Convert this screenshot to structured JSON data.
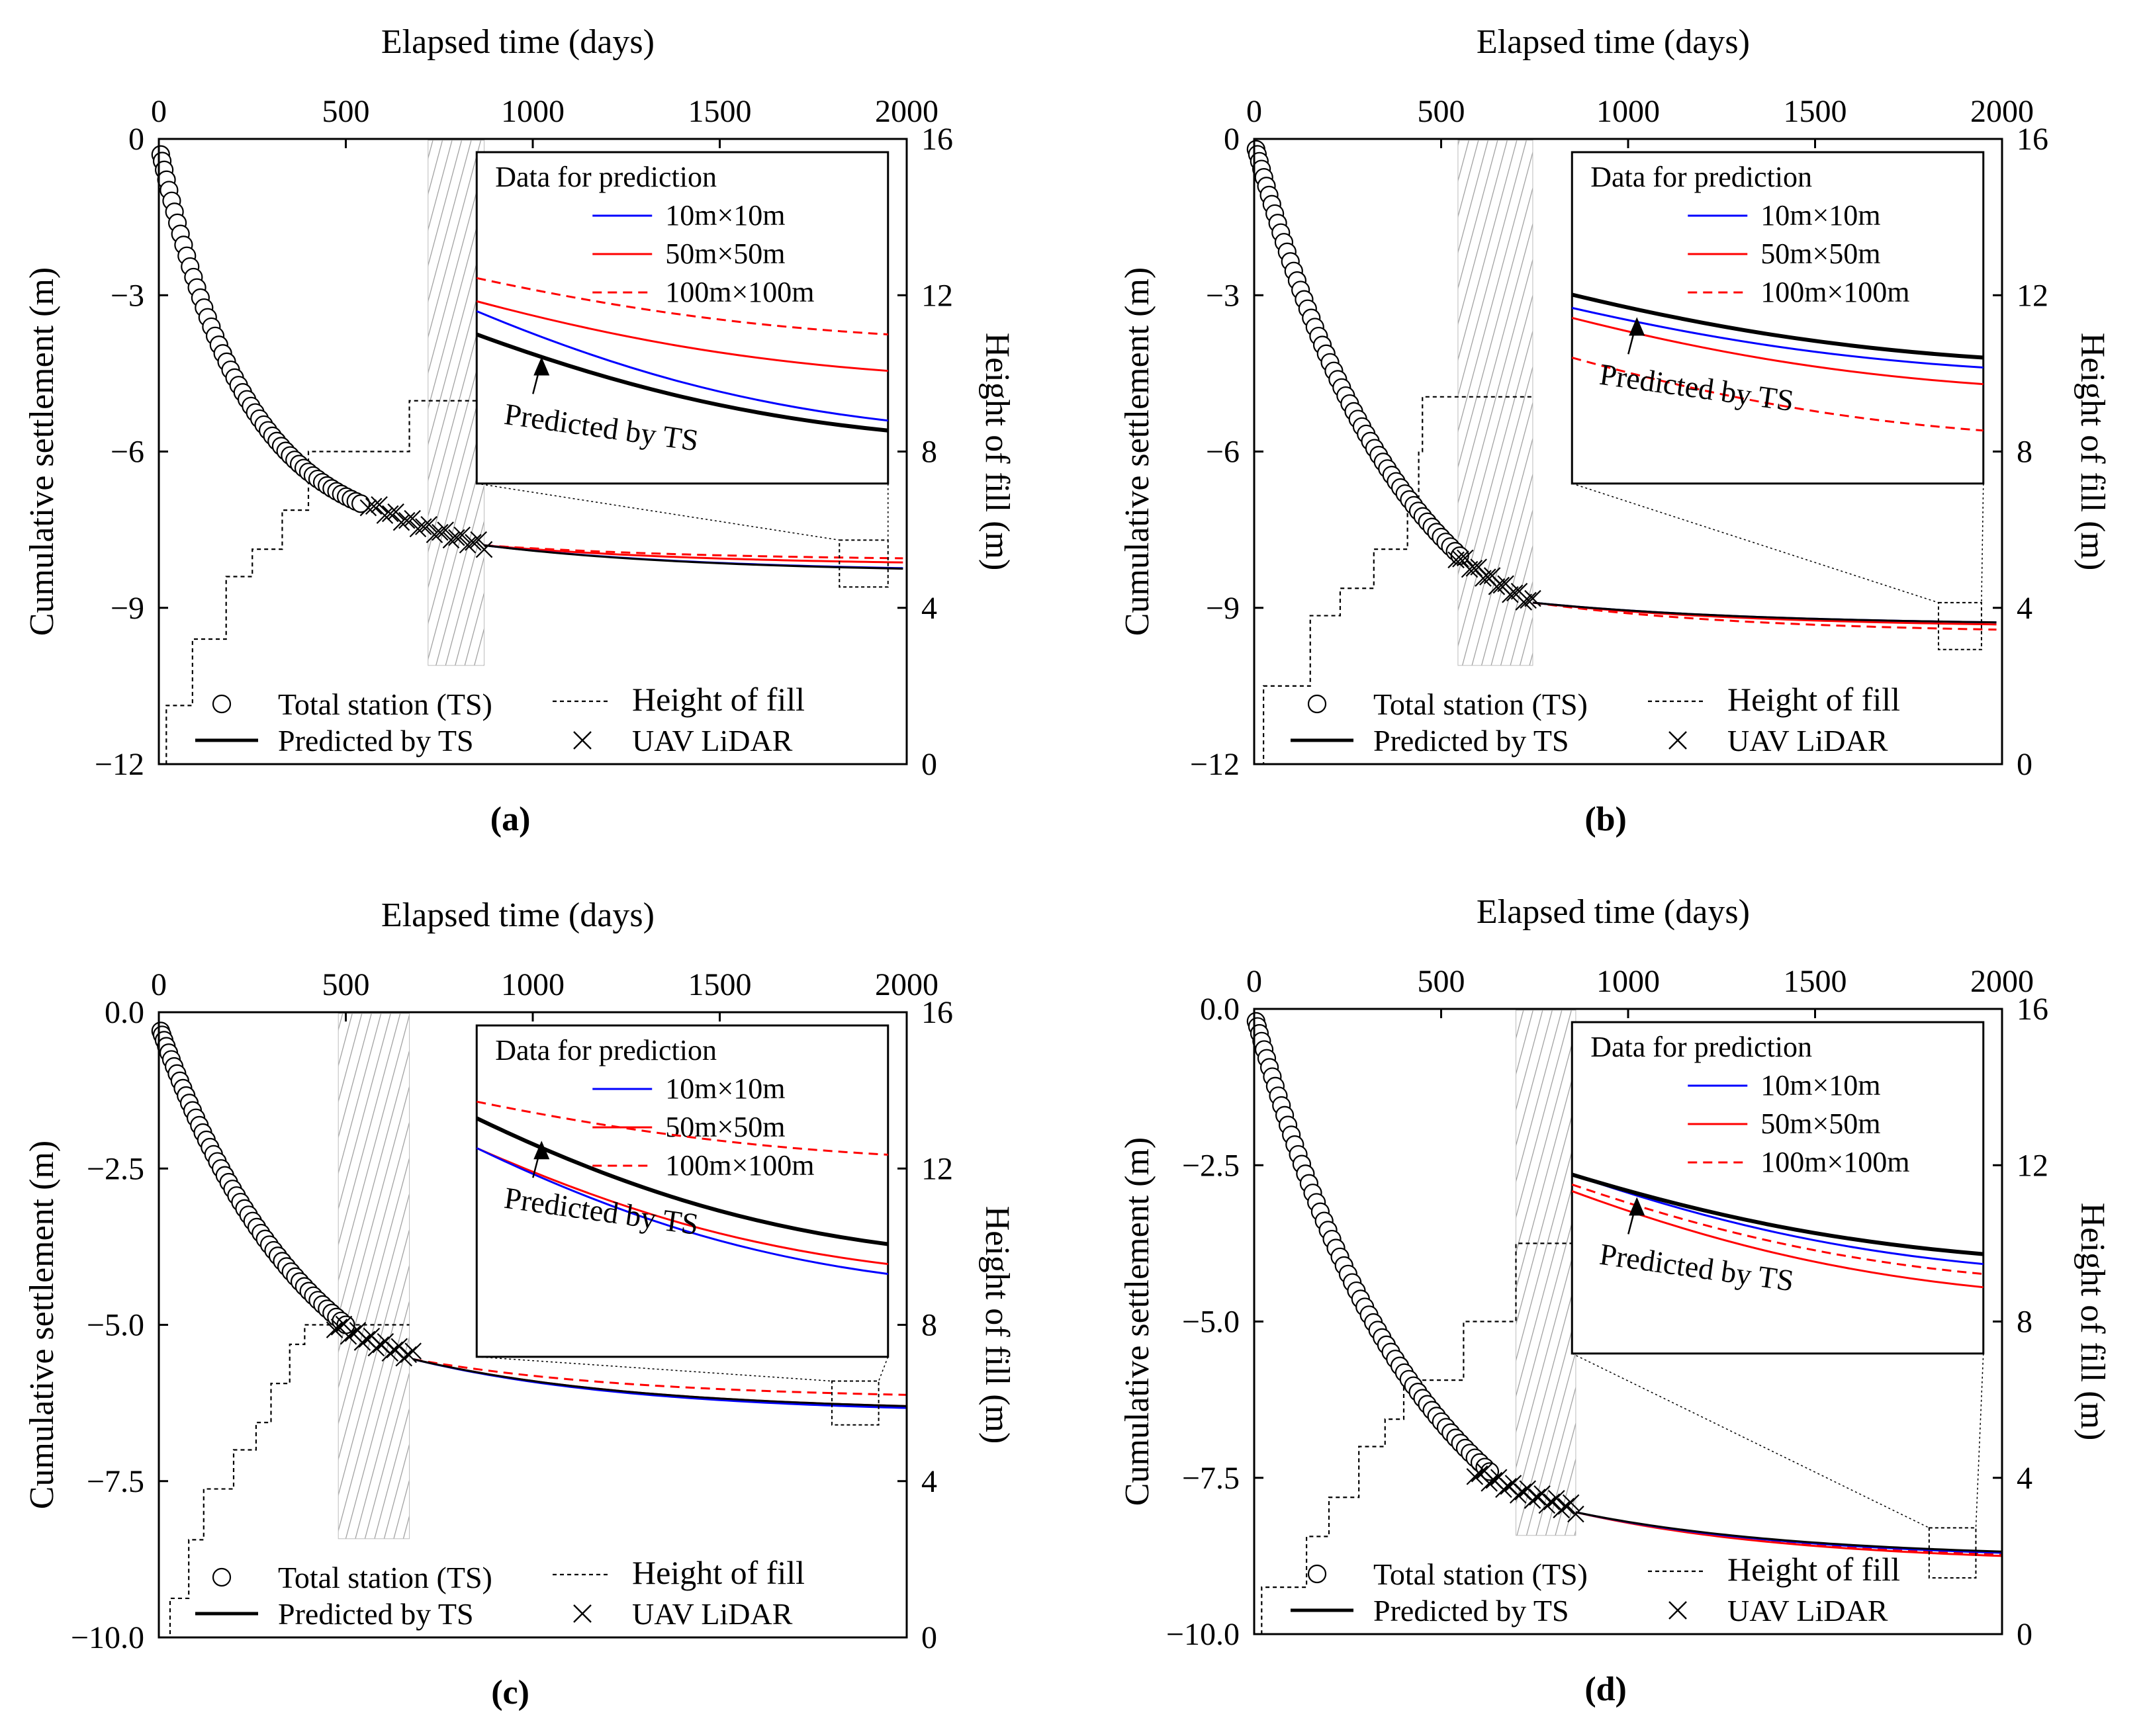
{
  "chart_data": [
    {
      "id": "a",
      "type": "line",
      "panel_label": "(a)",
      "title": "",
      "xlabel": "Elapsed time (days)",
      "ylabel": "Cumulative settlement (m)",
      "y2label": "Height of fill (m)",
      "xlim": [
        0,
        2000
      ],
      "ylim": [
        -12,
        0
      ],
      "y2lim": [
        0,
        16
      ],
      "xticks": [
        "0",
        "500",
        "1000",
        "1500",
        "2000"
      ],
      "yticks": [
        {
          "v": 0,
          "t": "0"
        },
        {
          "v": -3,
          "t": "-3"
        },
        {
          "v": -6,
          "t": "-6"
        },
        {
          "v": -9,
          "t": "-9"
        },
        {
          "v": -12,
          "t": "-12"
        }
      ],
      "y2ticks": [
        "0",
        "4",
        "8",
        "12",
        "16"
      ],
      "ts_points": {
        "t0": 5,
        "t1": 540,
        "s0": -0.3,
        "s1": -7.0,
        "tau": 230,
        "n": 52
      },
      "lidar_points": {
        "t0": 560,
        "t1": 870,
        "s0": -7.0,
        "s1": -7.8,
        "tau": 500,
        "n": 22
      },
      "shaded_window": [
        720,
        870
      ],
      "fill_height_steps": [
        [
          0,
          0
        ],
        [
          20,
          1.5
        ],
        [
          90,
          3.2
        ],
        [
          180,
          4.8
        ],
        [
          250,
          5.5
        ],
        [
          330,
          6.5
        ],
        [
          400,
          8.0
        ],
        [
          670,
          9.3
        ],
        [
          870,
          9.3
        ]
      ],
      "prediction": {
        "t_start": 870,
        "s_start": -7.8,
        "predicted_by_ts": -8.25,
        "m10": -8.24,
        "m50": -8.13,
        "m100": -8.05
      },
      "zoom_box": {
        "t": [
          1820,
          1950
        ],
        "s": [
          -7.7,
          -8.6
        ]
      },
      "inset": {
        "title": "Data for prediction",
        "legend": [
          "10m×10m",
          "50m×50m",
          "100m×100m"
        ],
        "annotation": "Predicted by TS",
        "curves": {
          "predicted_by_ts": [
            0.55,
            0.84
          ],
          "m10": [
            0.48,
            0.81
          ],
          "m50": [
            0.45,
            0.66
          ],
          "m100": [
            0.38,
            0.55
          ]
        }
      },
      "legend": {
        "total_station": "Total station (TS)",
        "height_of_fill": "Height of fill",
        "predicted_by_ts": "Predicted by TS",
        "uav_lidar": "UAV LiDAR"
      }
    },
    {
      "id": "b",
      "type": "line",
      "panel_label": "(b)",
      "title": "",
      "xlabel": "Elapsed time (days)",
      "ylabel": "Cumulative settlement (m)",
      "y2label": "Height of fill (m)",
      "xlim": [
        0,
        2000
      ],
      "ylim": [
        -12,
        0
      ],
      "y2lim": [
        0,
        16
      ],
      "xticks": [
        "0",
        "500",
        "1000",
        "1500",
        "2000"
      ],
      "yticks": [
        {
          "v": 0,
          "t": "0"
        },
        {
          "v": -3,
          "t": "-3"
        },
        {
          "v": -6,
          "t": "-6"
        },
        {
          "v": -9,
          "t": "-9"
        },
        {
          "v": -12,
          "t": "-12"
        }
      ],
      "y2ticks": [
        "0",
        "4",
        "8",
        "12",
        "16"
      ],
      "ts_points": {
        "t0": 5,
        "t1": 550,
        "s0": -0.2,
        "s1": -8.0,
        "tau": 400,
        "n": 55
      },
      "lidar_points": {
        "t0": 540,
        "t1": 745,
        "s0": -8.0,
        "s1": -8.9,
        "tau": 600,
        "n": 18
      },
      "shaded_window": [
        545,
        745
      ],
      "fill_height_steps": [
        [
          0,
          0
        ],
        [
          25,
          2.0
        ],
        [
          150,
          3.8
        ],
        [
          230,
          4.5
        ],
        [
          320,
          5.5
        ],
        [
          410,
          6.5
        ],
        [
          440,
          8.0
        ],
        [
          450,
          9.4
        ],
        [
          745,
          9.4
        ]
      ],
      "prediction": {
        "t_start": 745,
        "s_start": -8.9,
        "predicted_by_ts": -9.28,
        "m10": -9.28,
        "m50": -9.32,
        "m100": -9.42
      },
      "zoom_box": {
        "t": [
          1830,
          1945
        ],
        "s": [
          -8.9,
          -9.8
        ]
      },
      "inset": {
        "title": "Data for prediction",
        "legend": [
          "10m×10m",
          "50m×50m",
          "100m×100m"
        ],
        "annotation": "Predicted by TS",
        "curves": {
          "predicted_by_ts": [
            0.43,
            0.62
          ],
          "m10": [
            0.47,
            0.65
          ],
          "m50": [
            0.5,
            0.7
          ],
          "m100": [
            0.62,
            0.84
          ]
        }
      },
      "legend": {
        "total_station": "Total station (TS)",
        "height_of_fill": "Height of fill",
        "predicted_by_ts": "Predicted by TS",
        "uav_lidar": "UAV LiDAR"
      }
    },
    {
      "id": "c",
      "type": "line",
      "panel_label": "(c)",
      "title": "",
      "xlabel": "Elapsed time (days)",
      "ylabel": "Cumulative settlement (m)",
      "y2label": "Height of fill (m)",
      "xlim": [
        0,
        2000
      ],
      "ylim": [
        -10,
        0
      ],
      "y2lim": [
        0,
        16
      ],
      "xticks": [
        "0",
        "500",
        "1000",
        "1500",
        "2000"
      ],
      "yticks": [
        {
          "v": 0,
          "t": "0.0"
        },
        {
          "v": -2.5,
          "t": "-2.5"
        },
        {
          "v": -5,
          "t": "-5.0"
        },
        {
          "v": -7.5,
          "t": "-7.5"
        },
        {
          "v": -10,
          "t": "-10.0"
        }
      ],
      "y2ticks": [
        "0",
        "4",
        "8",
        "12",
        "16"
      ],
      "ts_points": {
        "t0": 5,
        "t1": 500,
        "s0": -0.3,
        "s1": -5.0,
        "tau": 400,
        "n": 50
      },
      "lidar_points": {
        "t0": 470,
        "t1": 680,
        "s0": -5.0,
        "s1": -5.5,
        "tau": 500,
        "n": 18
      },
      "shaded_window": [
        480,
        670
      ],
      "fill_height_steps": [
        [
          0,
          0
        ],
        [
          30,
          1.0
        ],
        [
          80,
          2.5
        ],
        [
          120,
          3.8
        ],
        [
          200,
          4.8
        ],
        [
          260,
          5.5
        ],
        [
          300,
          6.5
        ],
        [
          350,
          7.5
        ],
        [
          390,
          8.0
        ],
        [
          670,
          8.0
        ]
      ],
      "prediction": {
        "t_start": 680,
        "s_start": -5.55,
        "predicted_by_ts": -6.3,
        "m10": -6.33,
        "m50": -6.3,
        "m100": -6.12
      },
      "zoom_box": {
        "t": [
          1800,
          1925
        ],
        "s": [
          -5.9,
          -6.6
        ]
      },
      "inset": {
        "title": "Data for prediction",
        "legend": [
          "10m×10m",
          "50m×50m",
          "100m×100m"
        ],
        "annotation": "Predicted by TS",
        "curves": {
          "predicted_by_ts": [
            0.28,
            0.66
          ],
          "m10": [
            0.37,
            0.75
          ],
          "m50": [
            0.37,
            0.72
          ],
          "m100": [
            0.23,
            0.39
          ]
        }
      },
      "legend": {
        "total_station": "Total station (TS)",
        "height_of_fill": "Height of fill",
        "predicted_by_ts": "Predicted by TS",
        "uav_lidar": "UAV LiDAR"
      }
    },
    {
      "id": "d",
      "type": "line",
      "panel_label": "(d)",
      "title": "",
      "xlabel": "Elapsed time (days)",
      "ylabel": "Cumulative settlement (m)",
      "y2label": "Height of fill (m)",
      "xlim": [
        0,
        2000
      ],
      "ylim": [
        -10,
        0
      ],
      "y2lim": [
        0,
        16
      ],
      "xticks": [
        "0",
        "500",
        "1000",
        "1500",
        "2000"
      ],
      "yticks": [
        {
          "v": 0,
          "t": "0.0"
        },
        {
          "v": -2.5,
          "t": "-2.5"
        },
        {
          "v": -5,
          "t": "-5.0"
        },
        {
          "v": -7.5,
          "t": "-7.5"
        },
        {
          "v": -10,
          "t": "-10.0"
        }
      ],
      "y2ticks": [
        "0",
        "4",
        "8",
        "12",
        "16"
      ],
      "ts_points": {
        "t0": 5,
        "t1": 630,
        "s0": -0.2,
        "s1": -7.4,
        "tau": 450,
        "n": 60
      },
      "lidar_points": {
        "t0": 590,
        "t1": 860,
        "s0": -7.4,
        "s1": -8.0,
        "tau": 500,
        "n": 22
      },
      "shaded_window": [
        700,
        860
      ],
      "fill_height_steps": [
        [
          0,
          0
        ],
        [
          20,
          1.2
        ],
        [
          140,
          2.5
        ],
        [
          200,
          3.5
        ],
        [
          280,
          4.8
        ],
        [
          350,
          5.5
        ],
        [
          400,
          6.5
        ],
        [
          560,
          7.8
        ],
        [
          560,
          8.0
        ],
        [
          690,
          8.0
        ],
        [
          700,
          10.0
        ],
        [
          860,
          10.0
        ]
      ],
      "prediction": {
        "t_start": 860,
        "s_start": -8.05,
        "predicted_by_ts": -8.68,
        "m10": -8.7,
        "m50": -8.75,
        "m100": -8.72
      },
      "zoom_box": {
        "t": [
          1805,
          1930
        ],
        "s": [
          -8.3,
          -9.1
        ]
      },
      "inset": {
        "title": "Data for prediction",
        "legend": [
          "10m×10m",
          "50m×50m",
          "100m×100m"
        ],
        "annotation": "Predicted by TS",
        "curves": {
          "predicted_by_ts": [
            0.46,
            0.7
          ],
          "m10": [
            0.46,
            0.73
          ],
          "m50": [
            0.51,
            0.8
          ],
          "m100": [
            0.49,
            0.76
          ]
        }
      },
      "legend": {
        "total_station": "Total station (TS)",
        "height_of_fill": "Height of fill",
        "predicted_by_ts": "Predicted by TS",
        "uav_lidar": "UAV LiDAR"
      }
    }
  ],
  "colors": {
    "ts_line": "#000000",
    "m10": "#0000ff",
    "m50": "#ff0000",
    "m100": "#ff0000",
    "shade": "#b0b0b0"
  }
}
